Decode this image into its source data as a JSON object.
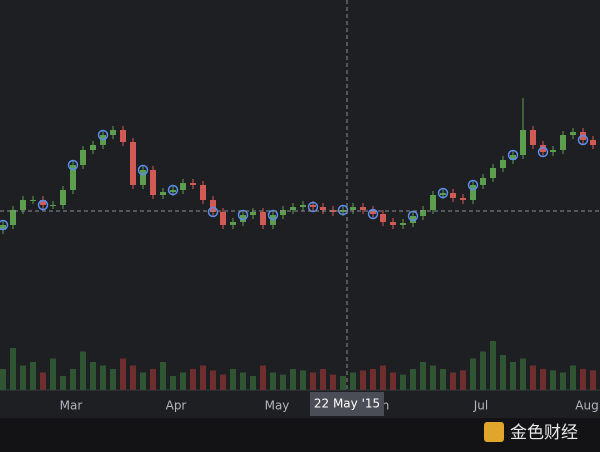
{
  "chart_data": {
    "type": "candlestick",
    "open": [
      160,
      165,
      180,
      190,
      190,
      185,
      185,
      200,
      225,
      240,
      245,
      255,
      260,
      248,
      205,
      220,
      195,
      198,
      200,
      207,
      205,
      190,
      178,
      165,
      168,
      175,
      178,
      165,
      175,
      180,
      183,
      185,
      183,
      180,
      178,
      180,
      183,
      180,
      176,
      168,
      165,
      167,
      174,
      180,
      195,
      197,
      192,
      190,
      205,
      212,
      222,
      230,
      235,
      260,
      245,
      238,
      240,
      255,
      258,
      250
    ],
    "close": [
      165,
      180,
      190,
      190,
      185,
      185,
      200,
      225,
      240,
      245,
      255,
      260,
      248,
      205,
      220,
      195,
      198,
      200,
      207,
      205,
      190,
      178,
      165,
      168,
      175,
      178,
      165,
      175,
      180,
      183,
      185,
      183,
      180,
      178,
      180,
      183,
      180,
      176,
      168,
      165,
      167,
      174,
      180,
      195,
      197,
      192,
      190,
      205,
      212,
      222,
      230,
      235,
      260,
      245,
      238,
      240,
      255,
      258,
      250,
      245
    ],
    "high": [
      169,
      184,
      194,
      194,
      194,
      189,
      204,
      229,
      244,
      249,
      259,
      264,
      264,
      252,
      224,
      224,
      202,
      204,
      211,
      211,
      209,
      194,
      182,
      172,
      179,
      182,
      182,
      179,
      184,
      187,
      189,
      189,
      187,
      184,
      184,
      187,
      187,
      184,
      180,
      172,
      171,
      178,
      184,
      199,
      201,
      201,
      196,
      209,
      216,
      226,
      234,
      239,
      292,
      264,
      249,
      244,
      259,
      262,
      262,
      254
    ],
    "low": [
      156,
      161,
      176,
      186,
      181,
      181,
      181,
      196,
      221,
      236,
      241,
      251,
      244,
      201,
      201,
      191,
      191,
      194,
      196,
      201,
      186,
      174,
      161,
      161,
      164,
      171,
      161,
      161,
      171,
      176,
      179,
      179,
      176,
      174,
      174,
      176,
      176,
      172,
      164,
      161,
      161,
      163,
      170,
      176,
      191,
      188,
      186,
      186,
      201,
      208,
      218,
      226,
      231,
      241,
      234,
      234,
      236,
      251,
      246,
      241
    ],
    "volume": [
      30,
      60,
      35,
      40,
      25,
      45,
      20,
      30,
      55,
      40,
      35,
      30,
      45,
      35,
      25,
      30,
      40,
      20,
      25,
      30,
      35,
      28,
      22,
      30,
      25,
      20,
      35,
      25,
      22,
      30,
      28,
      25,
      30,
      22,
      20,
      25,
      28,
      30,
      35,
      25,
      22,
      30,
      40,
      35,
      30,
      25,
      28,
      45,
      55,
      70,
      50,
      40,
      45,
      35,
      30,
      28,
      25,
      35,
      30,
      28
    ],
    "up_color": "#5c9e4e",
    "down_color": "#d25a55",
    "up_volume_color": "#2f5533",
    "down_volume_color": "#6e2e2e",
    "event_indices": [
      0,
      4,
      7,
      10,
      14,
      17,
      21,
      24,
      27,
      31,
      34,
      37,
      41,
      44,
      47,
      51,
      54,
      58
    ],
    "event_color": "#5b8def",
    "ylim": [
      0,
      390
    ],
    "volume_lim": [
      0,
      100
    ],
    "xticks": [
      {
        "value": 6.8,
        "label": "Mar"
      },
      {
        "value": 17.3,
        "label": "Apr"
      },
      {
        "value": 27.4,
        "label": "May"
      },
      {
        "value": 37.7,
        "label": "Jun"
      },
      {
        "value": 47.8,
        "label": "Jul"
      },
      {
        "value": 58.4,
        "label": "Aug"
      }
    ],
    "crosshair": {
      "x": 34.4,
      "y": 179,
      "label": "22 May '15"
    },
    "watermark": "金色财经"
  }
}
